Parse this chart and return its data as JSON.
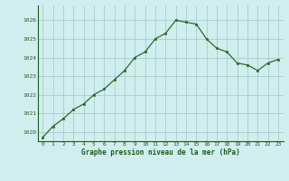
{
  "x": [
    0,
    1,
    2,
    3,
    4,
    5,
    6,
    7,
    8,
    9,
    10,
    11,
    12,
    13,
    14,
    15,
    16,
    17,
    18,
    19,
    20,
    21,
    22,
    23
  ],
  "y": [
    1019.7,
    1020.3,
    1020.7,
    1021.2,
    1021.5,
    1022.0,
    1022.3,
    1022.8,
    1023.3,
    1024.0,
    1024.3,
    1025.0,
    1025.3,
    1026.0,
    1025.9,
    1025.8,
    1025.0,
    1024.5,
    1024.3,
    1023.7,
    1023.6,
    1023.3,
    1023.7,
    1023.9
  ],
  "line_color": "#2d6a2d",
  "marker_color": "#2d6a2d",
  "bg_color": "#d0eeee",
  "grid_color": "#aacccc",
  "xlabel": "Graphe pression niveau de la mer (hPa)",
  "xlabel_color": "#1a5c1a",
  "tick_color": "#1a5c1a",
  "ylim_min": 1019.5,
  "ylim_max": 1026.8,
  "yticks": [
    1020,
    1021,
    1022,
    1023,
    1024,
    1025,
    1026
  ],
  "xticks": [
    0,
    1,
    2,
    3,
    4,
    5,
    6,
    7,
    8,
    9,
    10,
    11,
    12,
    13,
    14,
    15,
    16,
    17,
    18,
    19,
    20,
    21,
    22,
    23
  ]
}
